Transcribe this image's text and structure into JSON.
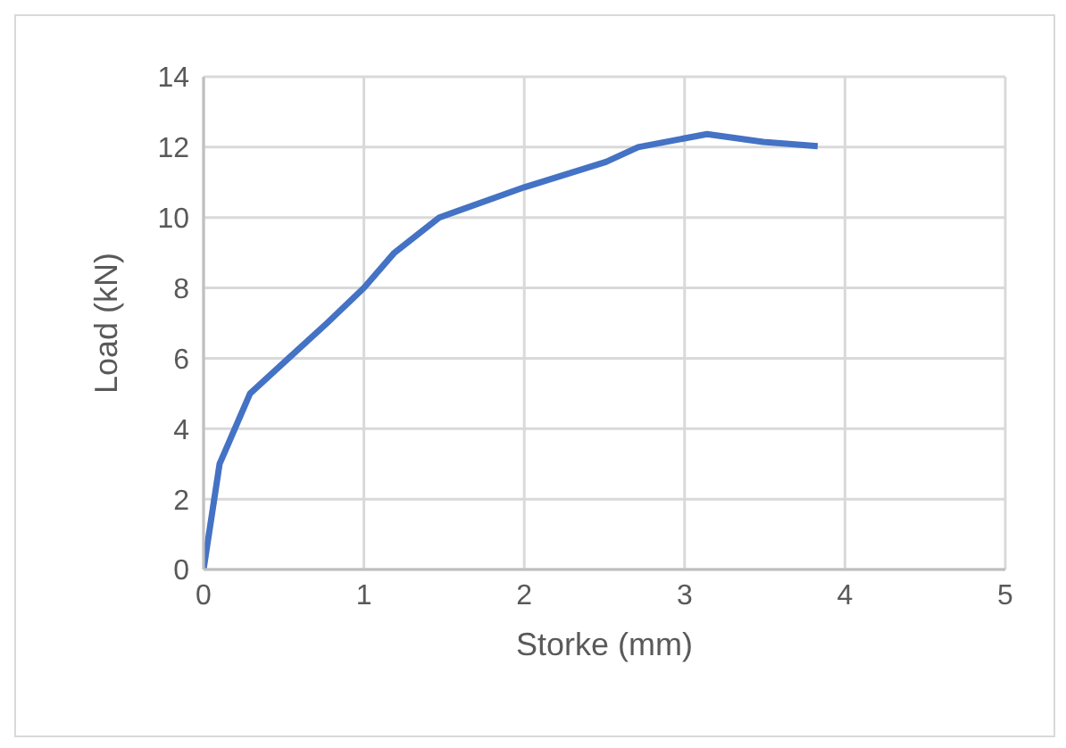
{
  "chart_data": {
    "type": "line",
    "xlabel": "Storke (mm)",
    "ylabel": "Load (kN)",
    "x": [
      0,
      0.1,
      0.29,
      0.53,
      0.77,
      1.0,
      1.19,
      1.47,
      2.0,
      2.51,
      2.71,
      3.14,
      3.49,
      3.83
    ],
    "series": [
      {
        "color": "#4472c4",
        "values": [
          0,
          3,
          5,
          6,
          7,
          8,
          9,
          10,
          10.86,
          11.58,
          12.0,
          12.37,
          12.15,
          12.03
        ]
      }
    ],
    "xlim": [
      0,
      5
    ],
    "xticks": [
      0,
      1,
      2,
      3,
      4,
      5
    ],
    "ylim": [
      0,
      14
    ],
    "yticks": [
      0,
      2,
      4,
      6,
      8,
      10,
      12,
      14
    ],
    "grid": true,
    "marker": "none",
    "line_style": "solid"
  }
}
